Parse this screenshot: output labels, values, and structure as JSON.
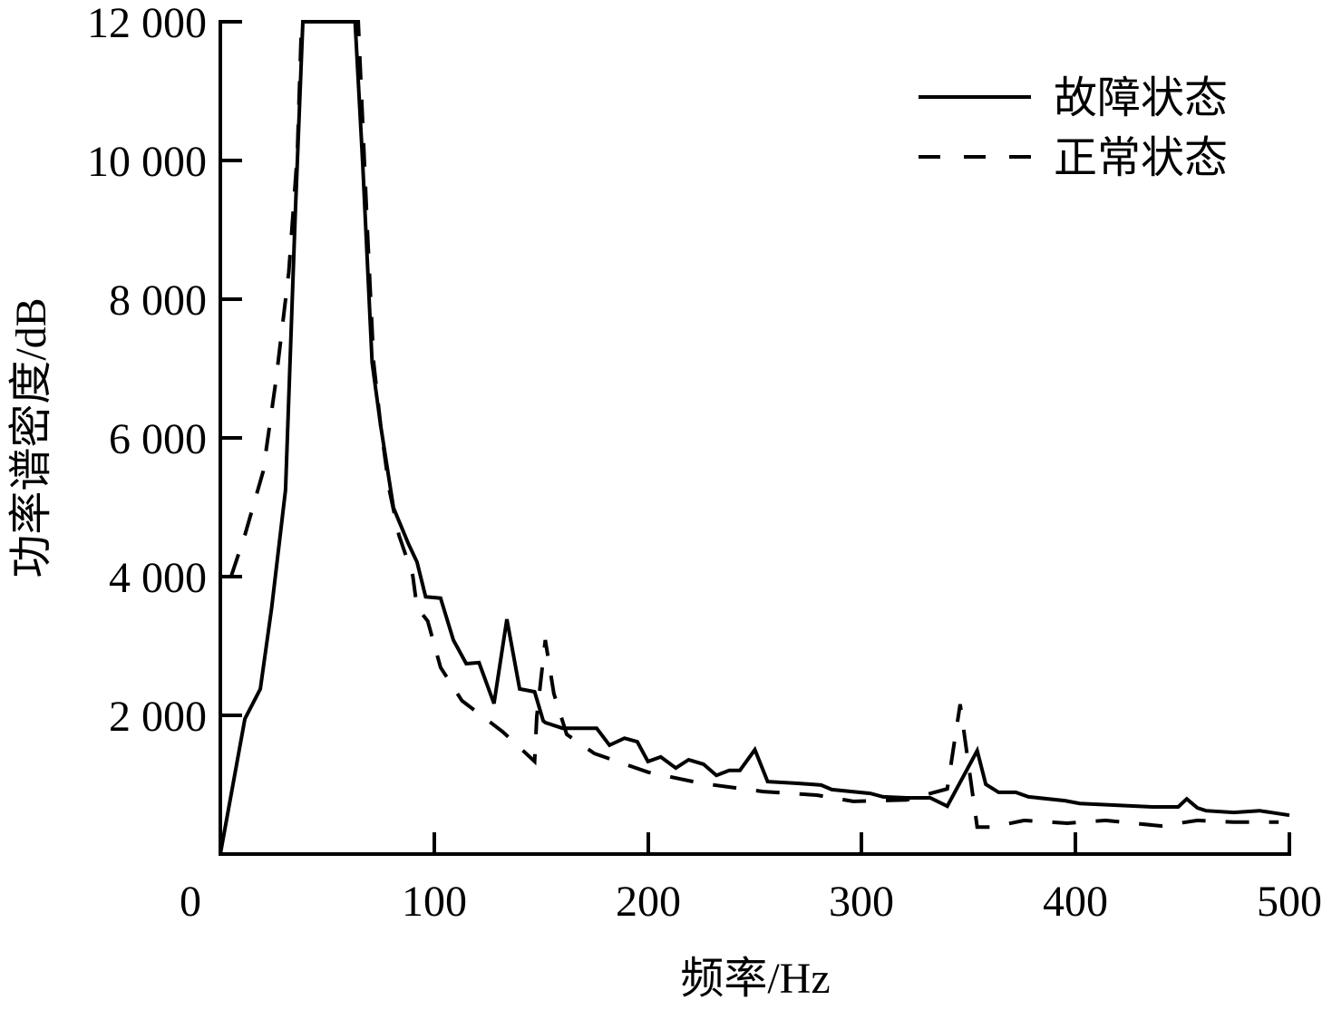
{
  "chart_data": {
    "type": "line",
    "title": "",
    "xlabel": "频率/Hz",
    "ylabel": "功率谱密度/dB",
    "xlim": [
      0,
      500
    ],
    "ylim": [
      0,
      12000
    ],
    "grid": false,
    "legend_position": "upper right",
    "x_ticks": [
      0,
      100,
      200,
      300,
      400,
      500
    ],
    "x_tick_labels": [
      "0",
      "100",
      "200",
      "300",
      "400",
      "500"
    ],
    "y_ticks": [
      2000,
      4000,
      6000,
      8000,
      10000,
      12000
    ],
    "y_tick_labels": [
      "2 000",
      "4 000",
      "6 000",
      "8 000",
      "10 000",
      "12 000"
    ],
    "series": [
      {
        "name": "故障状态",
        "style": "solid",
        "color": "#000000",
        "x": [
          0,
          11.5,
          18.7,
          24,
          30.5,
          35,
          38.6,
          63,
          66.6,
          71,
          75,
          81,
          88,
          92,
          96,
          103,
          109,
          115,
          121,
          128,
          134,
          140,
          147,
          151,
          152,
          160,
          176,
          182,
          189,
          195,
          200,
          206,
          213,
          219,
          226,
          232,
          238,
          243,
          250,
          256,
          270,
          281,
          286,
          304,
          310,
          321,
          332,
          340,
          354,
          358,
          364,
          372,
          378,
          395,
          402,
          419,
          436,
          448,
          452,
          457,
          461,
          474,
          486,
          500
        ],
        "values": [
          0,
          1950,
          2380,
          3550,
          5250,
          9180,
          12000,
          12000,
          9960,
          7085,
          6170,
          4990,
          4470,
          4210,
          3710,
          3690,
          3085,
          2745,
          2760,
          2170,
          3385,
          2380,
          2340,
          1920,
          1895,
          1815,
          1815,
          1570,
          1670,
          1620,
          1335,
          1400,
          1240,
          1360,
          1295,
          1135,
          1205,
          1205,
          1505,
          1045,
          1020,
          995,
          930,
          875,
          825,
          810,
          810,
          690,
          1490,
          1005,
          890,
          890,
          825,
          770,
          730,
          705,
          680,
          680,
          795,
          665,
          625,
          600,
          625,
          560
        ]
      },
      {
        "name": "正常状态",
        "style": "dashed",
        "color": "#000000",
        "x": [
          5,
          11.5,
          20,
          26,
          32,
          36,
          38,
          64.5,
          68.7,
          71.7,
          75,
          79,
          83.5,
          90,
          92,
          97,
          103,
          113,
          132,
          147,
          148,
          152,
          156,
          162,
          175,
          200,
          225,
          254,
          279,
          296,
          321,
          340,
          346,
          354,
          361,
          376,
          396,
          414,
          440,
          457,
          474,
          495
        ],
        "values": [
          4000,
          4600,
          5515,
          6825,
          8390,
          10090,
          12000,
          12000,
          9045,
          7085,
          6170,
          5255,
          4600,
          4015,
          3555,
          3360,
          2690,
          2210,
          1765,
          1335,
          1985,
          3085,
          2315,
          1725,
          1450,
          1180,
          1020,
          900,
          850,
          760,
          780,
          940,
          2160,
          390,
          390,
          485,
          445,
          485,
          405,
          485,
          460,
          460
        ]
      }
    ]
  },
  "legend": {
    "items": [
      {
        "label": "故障状态",
        "style": "solid"
      },
      {
        "label": "正常状态",
        "style": "dashed"
      }
    ]
  },
  "axes": {
    "x_title": "频率/Hz",
    "y_title": "功率谱密度/dB",
    "x_ticks": [
      "0",
      "100",
      "200",
      "300",
      "400",
      "500"
    ],
    "y_ticks": [
      "2 000",
      "4 000",
      "6 000",
      "8 000",
      "10 000",
      "12 000"
    ]
  }
}
